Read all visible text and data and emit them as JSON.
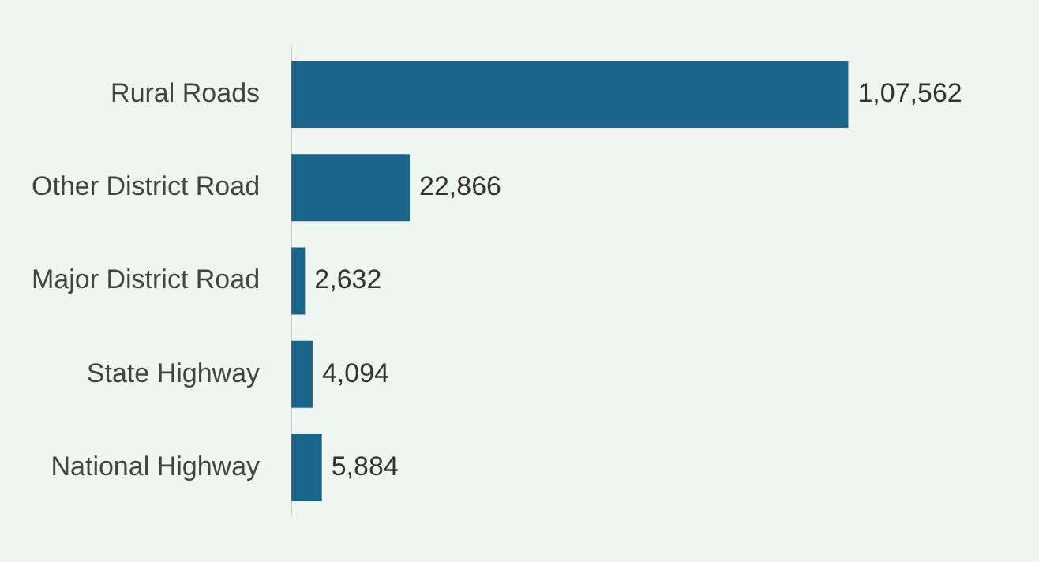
{
  "chart_data": {
    "type": "bar",
    "orientation": "horizontal",
    "categories": [
      "Rural Roads",
      "Other District Road",
      "Major District Road",
      "State Highway",
      "National Highway"
    ],
    "values": [
      107562,
      22866,
      2632,
      4094,
      5884
    ],
    "color": "#1a6389",
    "value_labels": [
      "1,07,562",
      "22,866",
      "2,632",
      "4,094",
      "5,884"
    ],
    "tick_labels": "y",
    "grid": false,
    "legend": false
  }
}
